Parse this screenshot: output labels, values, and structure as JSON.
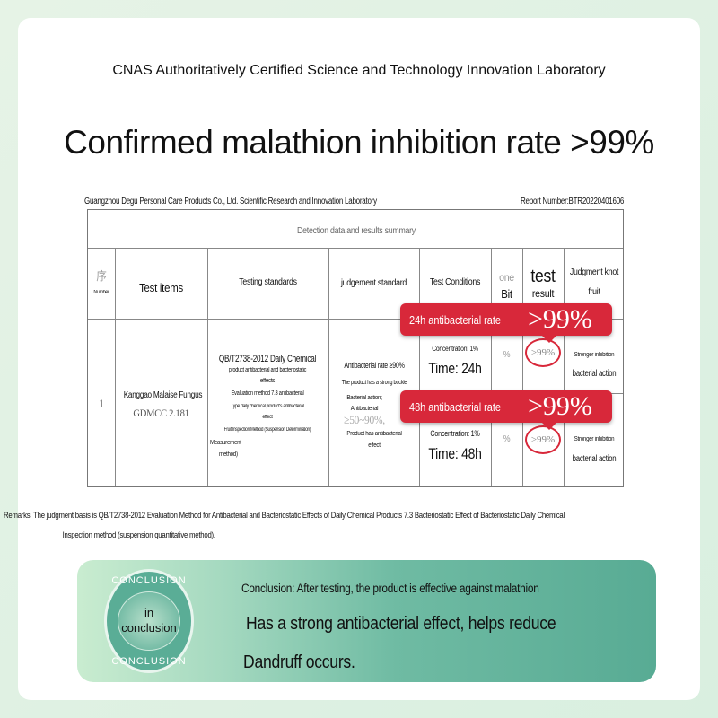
{
  "header": {
    "lab": "CNAS Authoritatively Certified Science and Technology Innovation Laboratory",
    "title": "Confirmed malathion inhibition rate >99%"
  },
  "report": {
    "company": "Guangzhou Degu Personal Care Products Co., Ltd. Scientific Research and Innovation Laboratory",
    "number": "Report Number:BTR20220401606",
    "summary": "Detection data and results summary",
    "columns": {
      "num_cn": "序",
      "num": "Number",
      "items": "Test items",
      "standards": "Testing standards",
      "judgement": "judgement standard",
      "conditions": "Test Conditions",
      "unit1": "one",
      "unit2": "Bit",
      "result1": "test",
      "result2": "result",
      "jk1": "Judgment knot",
      "jk2": "fruit"
    },
    "row": {
      "num": "1",
      "item": "Kanggao Malaise Fungus",
      "strain": "GDMCC 2.181",
      "std": [
        "QB/T2738-2012 Daily Chemical",
        "product antibacterial and bacteriostatic",
        "effects",
        "Evaluation method 7.3 antibacterial",
        "Type daily chemical product's antibacterial",
        "effect",
        "Fruit Inspection Method (Suspension Determination)",
        "Measurement",
        "method)"
      ],
      "judge": [
        "Antibacterial rate ≥90%",
        "The product has a strong buckle",
        "Bacterial action;",
        "Antibacterial",
        "≥50~90%,",
        "Product has antibacterial",
        "effect"
      ],
      "sub": [
        {
          "conc": "Concentration: 1%",
          "time": "Time: 24h",
          "unit": "%",
          "result": ">99%",
          "j1": "Stronger inhibition",
          "j2": "bacterial action"
        },
        {
          "conc": "Concentration: 1%",
          "time": "Time: 48h",
          "unit": "%",
          "result": ">99%",
          "j1": "Stronger inhibition",
          "j2": "bacterial action"
        }
      ]
    },
    "callouts": [
      {
        "label": "24h antibacterial rate",
        "value": ">99%"
      },
      {
        "label": "48h antibacterial rate",
        "value": ">99%"
      }
    ]
  },
  "remarks": [
    "Remarks: The judgment basis is QB/T2738-2012 Evaluation Method for Antibacterial and Bacteriostatic Effects of Daily Chemical Products 7.3 Bacteriostatic Effect of Bacteriostatic Daily Chemical",
    "Inspection method (suspension quantitative method)."
  ],
  "conclusion": {
    "badge_top": "CONCLUSION",
    "badge_bottom": "CONCLUSION",
    "badge_in1": "in",
    "badge_in2": "conclusion",
    "line1": "Conclusion: After testing, the product is effective against malathion",
    "line2": "Has a strong antibacterial effect, helps reduce",
    "line3": "Dandruff occurs."
  },
  "colors": {
    "accent": "#d8283a",
    "conclusion_bg": "#58ab94"
  }
}
